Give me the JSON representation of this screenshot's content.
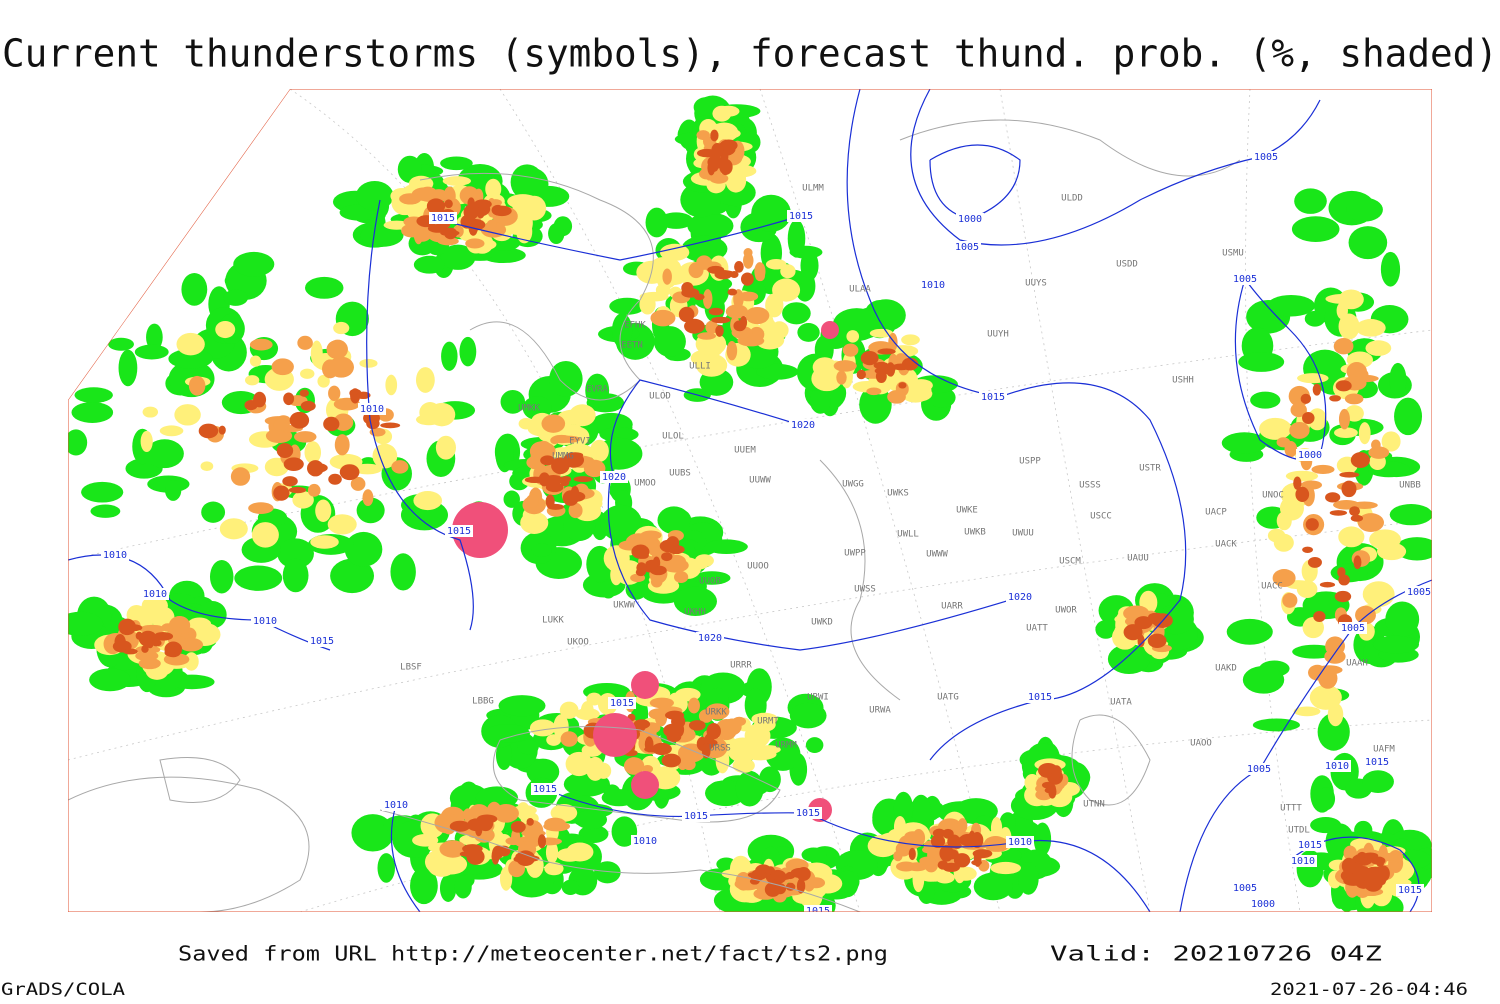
{
  "title": "Current thunderstorms (symbols), forecast thund. prob. (%, shaded)",
  "footer": {
    "source": "Saved from URL http://meteocenter.net/fact/ts2.png",
    "valid": "Valid: 20210726 04Z",
    "software": "GrADS/COLA",
    "timestamp": "2021-07-26-04:46"
  },
  "isobar_labels": [
    "1015",
    "1010",
    "1010",
    "1010",
    "1010",
    "1015",
    "1015",
    "1020",
    "1020",
    "1015",
    "1000",
    "1005",
    "1010",
    "1015",
    "1005",
    "1005",
    "1000",
    "1005",
    "1005",
    "1020",
    "1020",
    "1015",
    "1015",
    "1015",
    "1015",
    "1010",
    "1010",
    "1015",
    "1010",
    "1005",
    "1010",
    "1015",
    "1015",
    "1010",
    "1005",
    "1000",
    "1015",
    "1015"
  ],
  "stations": [
    "ULMM",
    "ULDD",
    "USDD",
    "USMU",
    "UUYS",
    "ULAA",
    "UUYH",
    "EFHK",
    "EETN",
    "ULLI",
    "USHH",
    "EVRA",
    "ULOD",
    "UMKK",
    "ULOL",
    "EYVI",
    "UUEM",
    "UMMG",
    "USPP",
    "USTR",
    "UMOO",
    "UUBS",
    "UUWW",
    "UWGG",
    "UWKS",
    "USSS",
    "UACP",
    "UNOC",
    "UNBB",
    "UWKE",
    "USCC",
    "UWKB",
    "UWUU",
    "UWLL",
    "UACK",
    "UWPP",
    "UWWW",
    "USCM",
    "UAUU",
    "UUOO",
    "UUOB",
    "UWSS",
    "UACC",
    "UKHH",
    "UWOR",
    "UARR",
    "UKWW",
    "LUKK",
    "UWKD",
    "UATT",
    "UKOO",
    "LBSF",
    "URRR",
    "UAKD",
    "UAAH",
    "URWI",
    "UATG",
    "LBBG",
    "URWA",
    "UATA",
    "URKK",
    "URMT",
    "URMM",
    "UAOO",
    "URSS",
    "UAFM",
    "UTNN",
    "UTTT",
    "UTDL"
  ]
}
